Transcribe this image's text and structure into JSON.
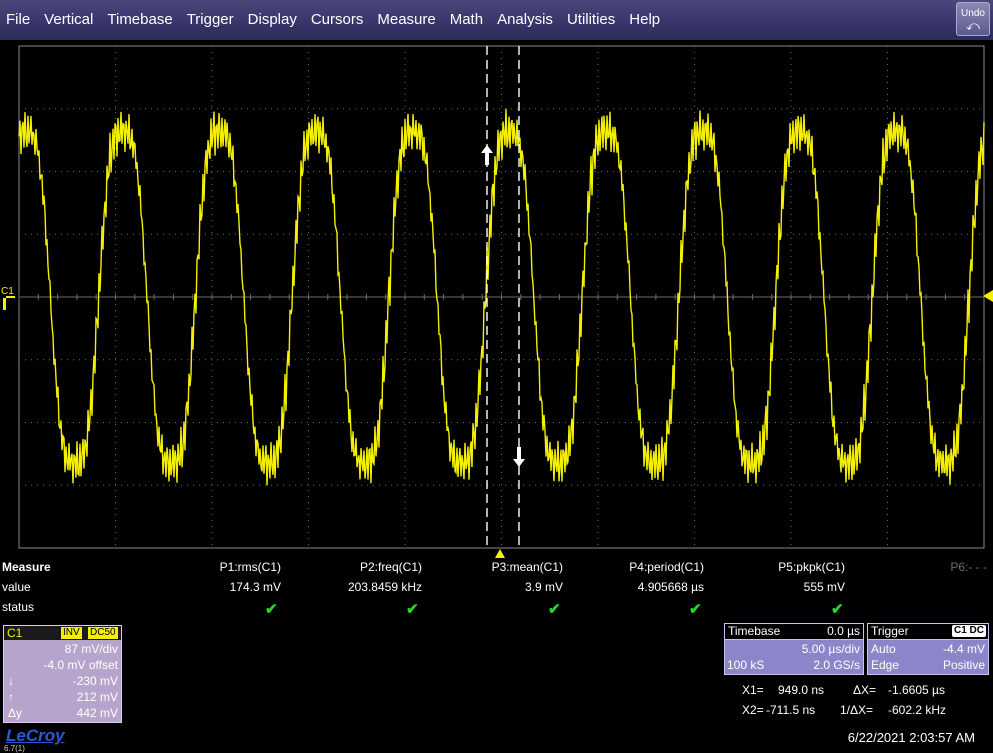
{
  "menu": {
    "items": [
      "File",
      "Vertical",
      "Timebase",
      "Trigger",
      "Display",
      "Cursors",
      "Measure",
      "Math",
      "Analysis",
      "Utilities",
      "Help"
    ],
    "undo_label": "Undo",
    "undo_icon": "undo-arrow-icon"
  },
  "scope": {
    "channel_marker": "C1",
    "trace_color": "#f4f000",
    "grid_color": "#6a6a6a",
    "divisions_x": 10,
    "divisions_y": 8
  },
  "measure": {
    "title": "Measure",
    "row_value": "value",
    "row_status": "status",
    "params": [
      {
        "name": "P1:rms(C1)",
        "value": "174.3 mV",
        "status": "ok"
      },
      {
        "name": "P2:freq(C1)",
        "value": "203.8459 kHz",
        "status": "ok"
      },
      {
        "name": "P3:mean(C1)",
        "value": "3.9 mV",
        "status": "ok"
      },
      {
        "name": "P4:period(C1)",
        "value": "4.905668 µs",
        "status": "ok"
      },
      {
        "name": "P5:pkpk(C1)",
        "value": "555 mV",
        "status": "ok"
      }
    ],
    "p6": "P6:- - -",
    "check_glyph": "✔"
  },
  "channel": {
    "name": "C1",
    "tag_inv": "INV",
    "tag_coupling": "DC50",
    "volts_div": "87 mV/div",
    "offset": "-4.0 mV offset",
    "cursor1_symbol": "↓",
    "cursor1": "-230 mV",
    "cursor2_symbol": "↑",
    "cursor2": "212 mV",
    "delta_symbol": "Δy",
    "delta": "442 mV",
    "box_color": "#b7a4cc"
  },
  "logo": {
    "text": "LeCroy",
    "sub": "6.7(1)"
  },
  "timebase": {
    "label": "Timebase",
    "delay": "0.0 µs",
    "time_div": "5.00 µs/div",
    "samples": "100 kS",
    "rate": "2.0 GS/s"
  },
  "trigger": {
    "label": "Trigger",
    "chtag": "C1 DC",
    "mode": "Auto",
    "level": "-4.4 mV",
    "type": "Edge",
    "slope": "Positive"
  },
  "cursors": {
    "x1_label": "X1=",
    "x1": "949.0 ns",
    "dx_label": "ΔX=",
    "dx": "-1.6605 µs",
    "x2_label": "X2=",
    "x2": "-711.5 ns",
    "inv_dx_label": "1/ΔX=",
    "inv_dx": "-602.2 kHz"
  },
  "datetime": "6/22/2021 2:03:57 AM"
}
